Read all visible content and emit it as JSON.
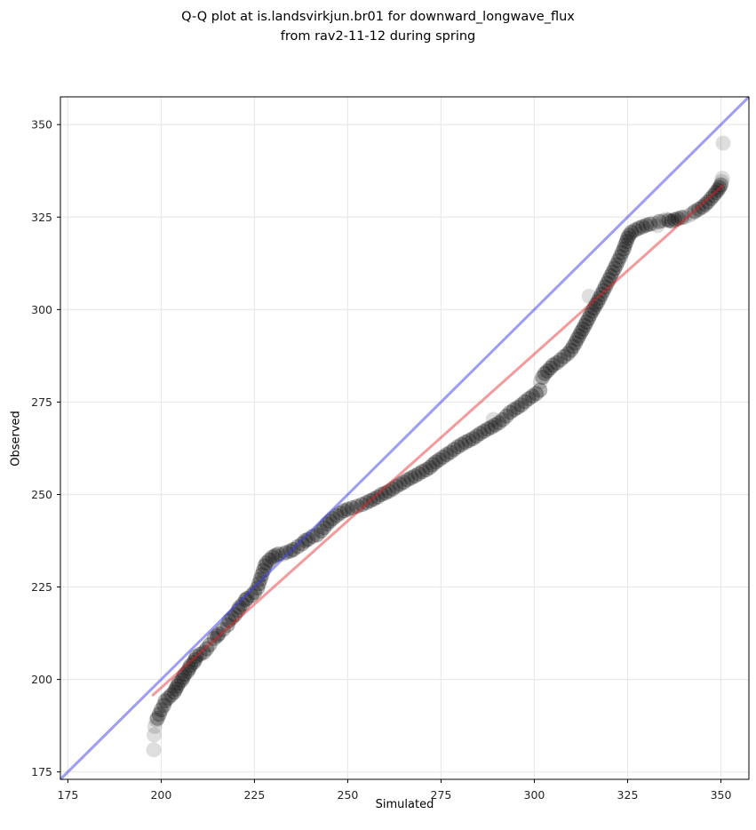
{
  "chart_data": {
    "type": "scatter",
    "title_line1": "Q-Q plot at is.landsvirkjun.br01 for downward_longwave_flux",
    "title_line2": "from rav2-11-12 during spring",
    "xlabel": "Simulated",
    "ylabel": "Observed",
    "xlim": [
      173,
      357.5
    ],
    "ylim": [
      173,
      357.5
    ],
    "x_ticks": [
      175,
      200,
      225,
      250,
      275,
      300,
      325,
      350
    ],
    "y_ticks": [
      175,
      200,
      225,
      250,
      275,
      300,
      325,
      350
    ],
    "grid": true,
    "grid_color": "#e9e9e9",
    "spine_color": "#000000",
    "identity_line": {
      "name": "one-to-one-line",
      "color_rgb": "60,60,235",
      "opacity": 0.5,
      "width": 3,
      "from": [
        173,
        173
      ],
      "to": [
        357.5,
        357.5
      ]
    },
    "fit_line": {
      "name": "regression-line",
      "color_rgb": "230,30,30",
      "opacity": 0.45,
      "width": 3,
      "from": [
        197.8,
        195.8
      ],
      "to": [
        350.5,
        333.5
      ]
    },
    "series": [
      {
        "name": "quantile-points",
        "color": "#000000",
        "alpha": 0.3,
        "radius": 8.5,
        "points": [
          [
            199,
            189.5
          ],
          [
            199.5,
            190.6
          ],
          [
            200,
            191.8
          ],
          [
            200.7,
            193
          ],
          [
            201.1,
            194.2
          ],
          [
            201.9,
            195
          ],
          [
            202.7,
            195.8
          ],
          [
            203.5,
            196.6
          ],
          [
            203.9,
            197.4
          ],
          [
            204.3,
            198.2
          ],
          [
            204.7,
            199
          ],
          [
            205.5,
            199.8
          ],
          [
            205.9,
            200.6
          ],
          [
            206.3,
            201.4
          ],
          [
            207.1,
            202.2
          ],
          [
            207.5,
            203
          ],
          [
            207.9,
            203.8
          ],
          [
            208.7,
            204.6
          ],
          [
            209.1,
            205.3
          ],
          [
            209.4,
            206.2
          ],
          [
            210.4,
            206.8
          ],
          [
            211.4,
            207.3
          ],
          [
            212.2,
            208.3
          ],
          [
            213,
            209.4
          ],
          [
            214.2,
            211.1
          ],
          [
            215,
            211.8
          ],
          [
            215.4,
            212.3
          ],
          [
            216.6,
            213.5
          ],
          [
            217.8,
            214.7
          ],
          [
            218.2,
            215.9
          ],
          [
            219,
            216.7
          ],
          [
            219.8,
            217.5
          ],
          [
            220.6,
            218.7
          ],
          [
            221,
            219.5
          ],
          [
            221.8,
            220.3
          ],
          [
            222.6,
            221.5
          ],
          [
            223,
            221.9
          ],
          [
            224.2,
            222.7
          ],
          [
            225,
            223.5
          ],
          [
            225.8,
            224.7
          ],
          [
            226.2,
            225.9
          ],
          [
            226.6,
            227.1
          ],
          [
            227,
            228.3
          ],
          [
            227.4,
            229.5
          ],
          [
            227.8,
            230.7
          ],
          [
            228.2,
            231.5
          ],
          [
            229,
            232.3
          ],
          [
            229.8,
            233.1
          ],
          [
            230.6,
            233.5
          ],
          [
            231.4,
            233.9
          ],
          [
            233.4,
            234.3
          ],
          [
            234.6,
            234.7
          ],
          [
            235.4,
            235.1
          ],
          [
            236.6,
            235.9
          ],
          [
            237.8,
            236.7
          ],
          [
            238.6,
            237.5
          ],
          [
            239.4,
            237.9
          ],
          [
            240.6,
            238.7
          ],
          [
            241.8,
            239.1
          ],
          [
            242.8,
            240.1
          ],
          [
            243.6,
            241
          ],
          [
            244.4,
            242
          ],
          [
            245.2,
            242.8
          ],
          [
            246,
            243.5
          ],
          [
            247,
            244.3
          ],
          [
            248,
            245
          ],
          [
            249,
            245.6
          ],
          [
            250,
            246
          ],
          [
            251.2,
            246.4
          ],
          [
            252.5,
            246.8
          ],
          [
            253.8,
            247.3
          ],
          [
            255,
            247.8
          ],
          [
            256,
            248.3
          ],
          [
            257,
            248.8
          ],
          [
            258,
            249.3
          ],
          [
            259,
            250
          ],
          [
            260,
            250.4
          ],
          [
            261,
            250.9
          ],
          [
            262,
            251.5
          ],
          [
            263,
            252.2
          ],
          [
            264,
            252.8
          ],
          [
            265,
            253.3
          ],
          [
            266,
            254
          ],
          [
            267,
            254.5
          ],
          [
            268,
            255
          ],
          [
            269,
            255.6
          ],
          [
            270,
            256.2
          ],
          [
            271,
            256.7
          ],
          [
            272,
            257.3
          ],
          [
            272.8,
            258.1
          ],
          [
            273.6,
            258.8
          ],
          [
            274.5,
            259.4
          ],
          [
            275.5,
            260.1
          ],
          [
            276.5,
            260.8
          ],
          [
            277.5,
            261.4
          ],
          [
            278.5,
            262.2
          ],
          [
            279.5,
            262.9
          ],
          [
            280.5,
            263.5
          ],
          [
            281.5,
            264.1
          ],
          [
            282.5,
            264.6
          ],
          [
            283.5,
            265.1
          ],
          [
            284.5,
            265.8
          ],
          [
            285.5,
            266.5
          ],
          [
            286.5,
            267.1
          ],
          [
            287.5,
            267.7
          ],
          [
            288.5,
            268.2
          ],
          [
            289.5,
            268.8
          ],
          [
            290.5,
            269.4
          ],
          [
            291.5,
            270.2
          ],
          [
            292.5,
            271.2
          ],
          [
            293.5,
            272.2
          ],
          [
            294.5,
            272.9
          ],
          [
            295.5,
            273.5
          ],
          [
            296.5,
            274.2
          ],
          [
            297.5,
            275.1
          ],
          [
            298.5,
            275.9
          ],
          [
            299.5,
            276.6
          ],
          [
            300.5,
            277.3
          ],
          [
            301.5,
            278.2
          ],
          [
            302.2,
            281.7
          ],
          [
            302.8,
            282.7
          ],
          [
            303.5,
            283.4
          ],
          [
            304.3,
            284.2
          ],
          [
            305,
            285
          ],
          [
            306,
            285.6
          ],
          [
            307,
            286.4
          ],
          [
            308,
            287.3
          ],
          [
            309,
            288.1
          ],
          [
            309.8,
            289
          ],
          [
            310.4,
            290
          ],
          [
            311,
            291
          ],
          [
            311.5,
            292
          ],
          [
            312,
            292.9
          ],
          [
            312.5,
            293.9
          ],
          [
            313,
            294.7
          ],
          [
            313.5,
            295.7
          ],
          [
            314,
            296.6
          ],
          [
            314.5,
            297.6
          ],
          [
            315,
            298.6
          ],
          [
            315.5,
            299.6
          ],
          [
            316,
            300.4
          ],
          [
            316.5,
            301.3
          ],
          [
            317,
            302.1
          ],
          [
            317.5,
            303.1
          ],
          [
            318,
            304.1
          ],
          [
            318.5,
            305.1
          ],
          [
            319,
            306.1
          ],
          [
            319.5,
            307.1
          ],
          [
            320,
            308.1
          ],
          [
            320.5,
            309.1
          ],
          [
            321,
            310.1
          ],
          [
            321.5,
            311.1
          ],
          [
            322,
            312.1
          ],
          [
            322.5,
            313.2
          ],
          [
            323,
            314.3
          ],
          [
            323.5,
            315.4
          ],
          [
            324,
            316.4
          ],
          [
            324.3,
            317.4
          ],
          [
            324.7,
            318.4
          ],
          [
            325,
            319.3
          ],
          [
            325.4,
            320.1
          ],
          [
            326,
            320.9
          ],
          [
            327,
            321.5
          ],
          [
            328,
            322
          ],
          [
            329,
            322.4
          ],
          [
            330,
            322.8
          ],
          [
            331,
            323.1
          ],
          [
            333.5,
            323.8
          ],
          [
            336,
            324.1
          ],
          [
            336.8,
            323.9
          ],
          [
            337.6,
            324.3
          ],
          [
            338.5,
            324.6
          ],
          [
            339.5,
            324.9
          ],
          [
            343,
            326.5
          ],
          [
            344,
            327.1
          ],
          [
            345,
            327.7
          ],
          [
            345.8,
            328.4
          ],
          [
            346.5,
            329.1
          ],
          [
            347.3,
            330
          ],
          [
            348,
            330.8
          ],
          [
            348.6,
            331.6
          ],
          [
            349.2,
            332.3
          ],
          [
            349.6,
            333
          ],
          [
            350,
            333.7
          ]
        ]
      },
      {
        "name": "quantile-points-sparse",
        "color": "#000000",
        "alpha": 0.13,
        "radius": 8.5,
        "points": [
          [
            198,
            181
          ],
          [
            198.1,
            185
          ],
          [
            198.3,
            187.3
          ],
          [
            198.7,
            189
          ],
          [
            232.6,
            233.9
          ],
          [
            289,
            270.3
          ],
          [
            301.6,
            280.4
          ],
          [
            314.7,
            303.6
          ],
          [
            332,
            323.3
          ],
          [
            333,
            322.7
          ],
          [
            334.5,
            324
          ],
          [
            335.4,
            324.4
          ],
          [
            340.3,
            325
          ],
          [
            341.5,
            325.5
          ],
          [
            342.3,
            326
          ],
          [
            350.2,
            334.6
          ],
          [
            350.4,
            335.5
          ],
          [
            350.6,
            345
          ]
        ]
      }
    ]
  }
}
